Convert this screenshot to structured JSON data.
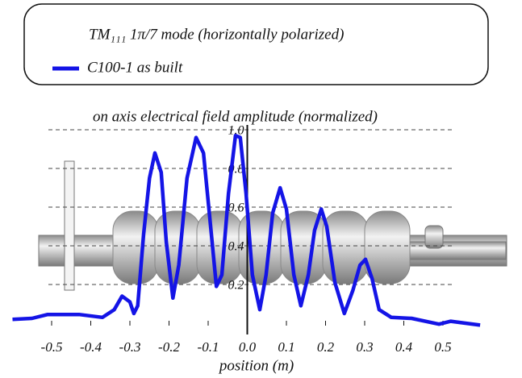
{
  "chart_data": {
    "type": "line",
    "legend_title": "TM₁₁₁ 1π/7 mode (horizontally polarized)",
    "title": "on axis electrical field amplitude (normalized)",
    "x_label": "position (m)",
    "xlim": [
      -0.6,
      0.6
    ],
    "ylim": [
      -0.05,
      1.05
    ],
    "xticks": [
      -0.5,
      -0.4,
      -0.3,
      -0.2,
      -0.1,
      {
        "value": 0,
        "label": "0.0"
      },
      0.1,
      0.2,
      0.3,
      0.4,
      0.5
    ],
    "yticks": [
      0.2,
      0.4,
      0.6,
      0.8,
      {
        "value": 1,
        "label": "1.0"
      }
    ],
    "grid": true,
    "series": [
      {
        "name": "C100-1 as built",
        "color": "#1414e6",
        "x": [
          -0.6,
          -0.55,
          -0.51,
          -0.43,
          -0.37,
          -0.34,
          -0.32,
          -0.3,
          -0.29,
          -0.28,
          -0.265,
          -0.25,
          -0.236,
          -0.22,
          -0.207,
          -0.19,
          -0.175,
          -0.154,
          -0.131,
          -0.112,
          -0.096,
          -0.079,
          -0.065,
          -0.048,
          -0.03,
          -0.018,
          -0.003,
          0.013,
          0.032,
          0.048,
          0.065,
          0.084,
          0.1,
          0.119,
          0.137,
          0.156,
          0.172,
          0.189,
          0.203,
          0.224,
          0.248,
          0.27,
          0.288,
          0.302,
          0.319,
          0.337,
          0.368,
          0.42,
          0.49,
          0.52,
          0.595
        ],
        "values": [
          0.02,
          0.025,
          0.045,
          0.045,
          0.03,
          0.07,
          0.14,
          0.11,
          0.05,
          0.09,
          0.46,
          0.75,
          0.88,
          0.78,
          0.42,
          0.13,
          0.3,
          0.75,
          0.96,
          0.88,
          0.55,
          0.19,
          0.25,
          0.67,
          0.97,
          0.96,
          0.67,
          0.25,
          0.07,
          0.25,
          0.57,
          0.7,
          0.59,
          0.25,
          0.09,
          0.25,
          0.48,
          0.59,
          0.5,
          0.21,
          0.05,
          0.17,
          0.3,
          0.33,
          0.23,
          0.07,
          0.03,
          0.025,
          -0.005,
          0.01,
          -0.01
        ]
      }
    ]
  }
}
